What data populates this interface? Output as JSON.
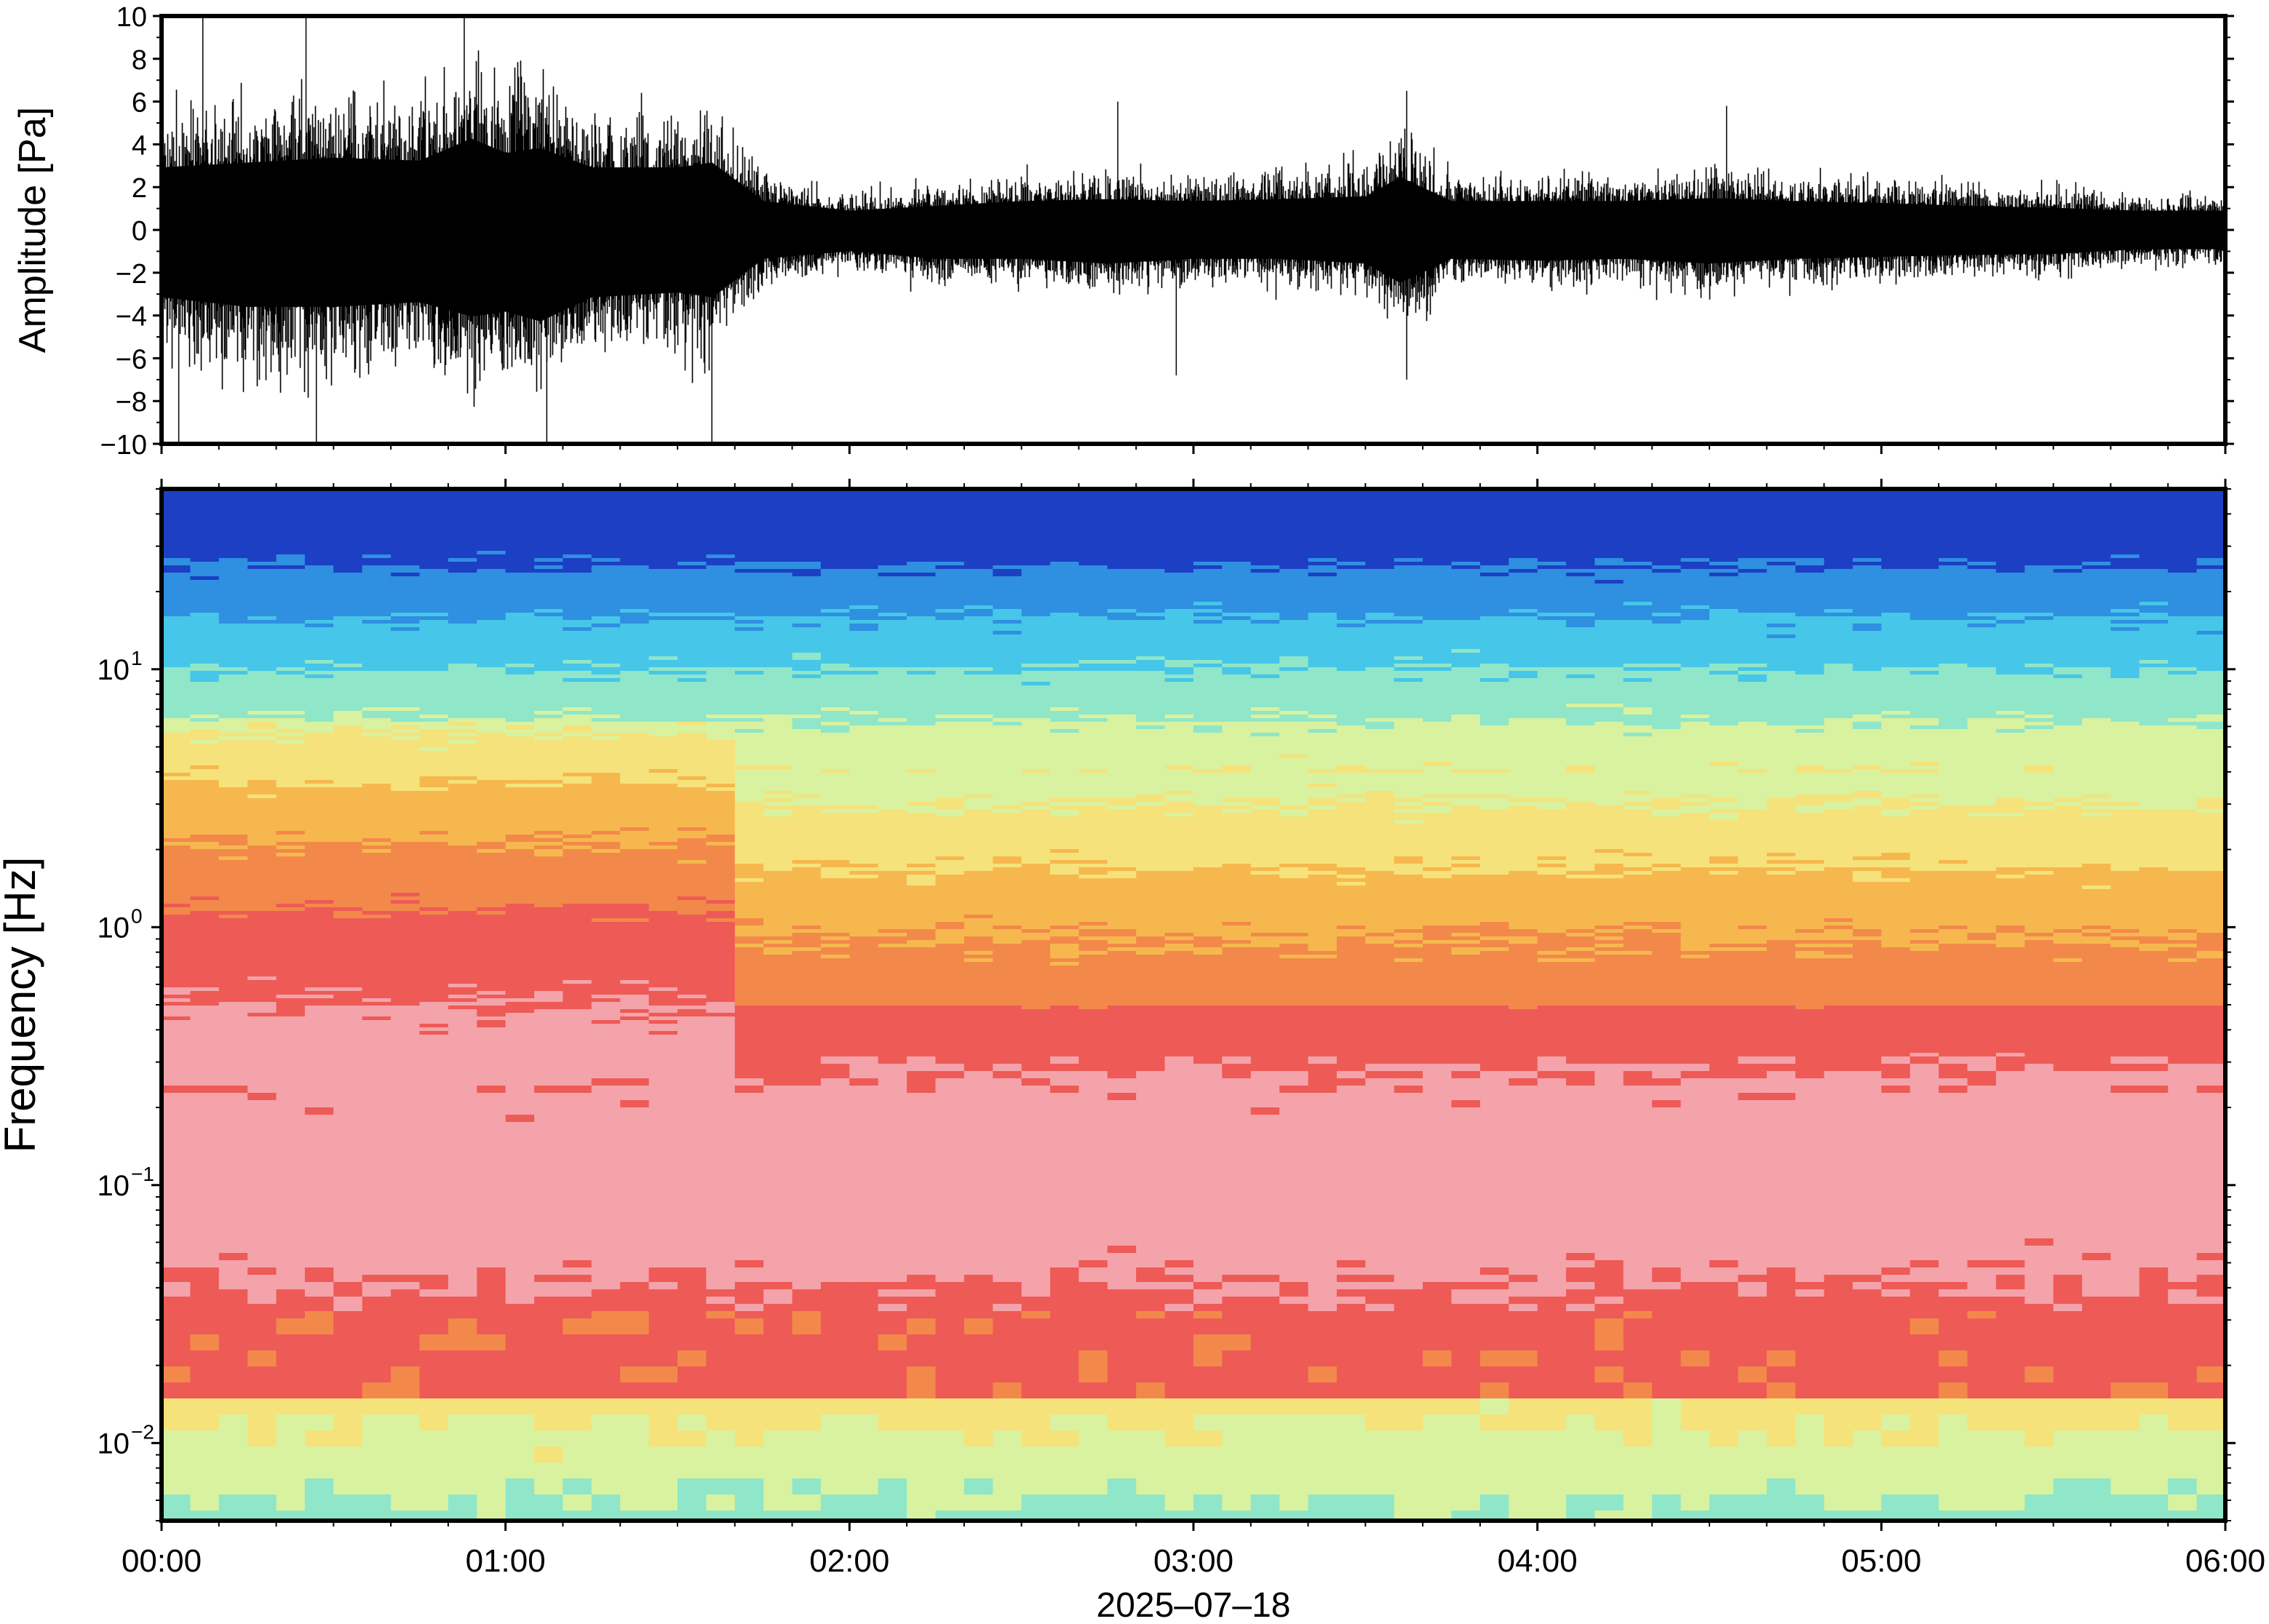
{
  "chart_data": [
    {
      "type": "line",
      "panel": "waveform",
      "ylabel": "Amplitude [Pa]",
      "ylim": [
        -10,
        10
      ],
      "y_ticks": [
        -10,
        -8,
        -6,
        -4,
        -2,
        0,
        2,
        4,
        6,
        8,
        10
      ],
      "y_tick_labels": [
        "−10",
        "−8",
        "−6",
        "−4",
        "−2",
        "0",
        "2",
        "4",
        "6",
        "8",
        "10"
      ],
      "x_range_hours": [
        0,
        6
      ],
      "envelope": {
        "description_units": "Pa",
        "hours": [
          0.0,
          0.25,
          0.5,
          0.75,
          0.9,
          1.0,
          1.1,
          1.25,
          1.5,
          1.6,
          1.75,
          2.0,
          2.25,
          2.5,
          2.75,
          3.0,
          3.25,
          3.5,
          3.6,
          3.75,
          4.0,
          4.25,
          4.5,
          4.75,
          5.0,
          5.25,
          5.5,
          5.75,
          6.0
        ],
        "upper": [
          6.5,
          7.0,
          7.5,
          7.2,
          9.5,
          8.0,
          8.5,
          6.5,
          6.5,
          7.0,
          3.0,
          2.0,
          2.5,
          3.0,
          3.2,
          3.0,
          3.2,
          3.5,
          5.5,
          3.0,
          3.0,
          3.0,
          3.3,
          3.0,
          2.8,
          2.5,
          2.3,
          2.0,
          2.0
        ],
        "lower": [
          -7.0,
          -8.0,
          -8.0,
          -7.5,
          -9.0,
          -8.5,
          -9.5,
          -7.0,
          -6.5,
          -7.0,
          -3.0,
          -2.2,
          -3.0,
          -3.0,
          -3.5,
          -3.0,
          -3.0,
          -3.5,
          -5.5,
          -3.0,
          -3.2,
          -3.0,
          -3.5,
          -3.0,
          -2.8,
          -2.6,
          -2.5,
          -2.0,
          -2.0
        ]
      },
      "spikes": [
        {
          "hour": 0.05,
          "value": -10
        },
        {
          "hour": 0.12,
          "value": 10
        },
        {
          "hour": 0.42,
          "value": 10
        },
        {
          "hour": 0.45,
          "value": -10
        },
        {
          "hour": 0.88,
          "value": 10
        },
        {
          "hour": 1.12,
          "value": -10
        },
        {
          "hour": 1.6,
          "value": -10
        },
        {
          "hour": 2.78,
          "value": 6.0
        },
        {
          "hour": 3.62,
          "value": 6.5
        },
        {
          "hour": 3.62,
          "value": -7.0
        },
        {
          "hour": 4.55,
          "value": 5.8
        },
        {
          "hour": 2.95,
          "value": -6.8
        }
      ]
    },
    {
      "type": "heatmap",
      "panel": "spectrogram",
      "ylabel": "Frequency [Hz]",
      "y_scale": "log",
      "ylim": [
        0.005,
        50
      ],
      "y_ticks": [
        0.01,
        0.1,
        1,
        10
      ],
      "y_tick_labels": [
        {
          "base": "10",
          "exp": "−2"
        },
        {
          "base": "10",
          "exp": "−1"
        },
        {
          "base": "10",
          "exp": "0"
        },
        {
          "base": "10",
          "exp": "1"
        }
      ],
      "colormap": "jet-like (blue low power, red/pink high power)",
      "colors": [
        "#1d3fc4",
        "#2f8fe0",
        "#46c6e8",
        "#8fe6c8",
        "#d8f2a0",
        "#f6e27a",
        "#f6b84e",
        "#f2894a",
        "#ee5a56",
        "#f4a3aa"
      ],
      "xlabel": "2025–07–18",
      "x_range_hours": [
        0,
        6
      ],
      "x_tick_labels": [
        "00:00",
        "01:00",
        "02:00",
        "03:00",
        "04:00",
        "05:00",
        "06:00"
      ]
    }
  ]
}
